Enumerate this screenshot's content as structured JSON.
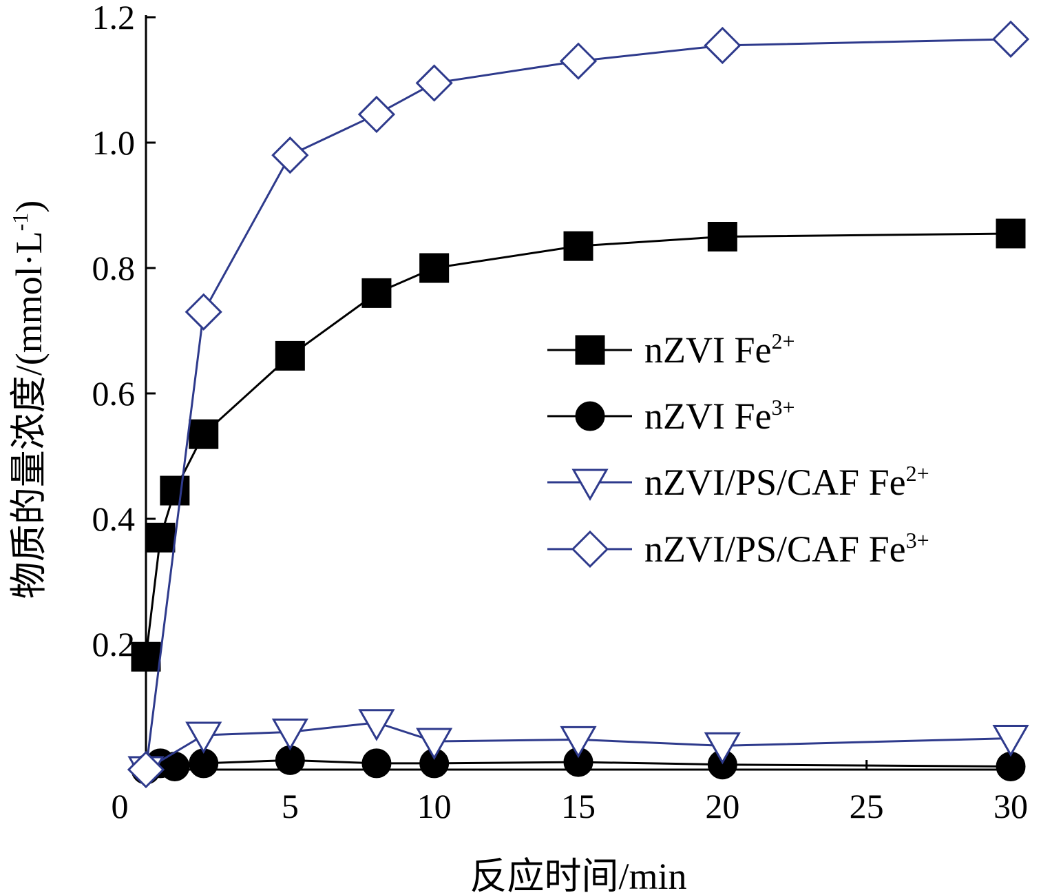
{
  "chart_data": {
    "type": "line",
    "title": "",
    "xlabel": "反应时间/min",
    "ylabel": "物质的量浓度/(mmol·L⁻¹)",
    "ylabel_parts": {
      "main": "物质的量浓度/(mmol·L",
      "sup": "-1",
      "close": ")"
    },
    "xlim": [
      0,
      30
    ],
    "ylim": [
      0,
      1.2
    ],
    "x_ticks": [
      0,
      5,
      10,
      15,
      20,
      25,
      30
    ],
    "x_tick_labels": [
      "0",
      "5",
      "10",
      "15",
      "20",
      "25",
      "30"
    ],
    "y_ticks": [
      0.2,
      0.4,
      0.6,
      0.8,
      1.0,
      1.2
    ],
    "y_tick_labels": [
      "0.2",
      "0.4",
      "0.6",
      "0.8",
      "1.0",
      "1.2"
    ],
    "grid": false,
    "legend_position": "center-right",
    "series": [
      {
        "name": "nZVI Fe²⁺",
        "label_main": "nZVI Fe",
        "label_sup": "2+",
        "marker": "square",
        "filled": true,
        "color": "#000000",
        "x": [
          0,
          0.5,
          1,
          2,
          5,
          8,
          10,
          15,
          20,
          30
        ],
        "y": [
          0.18,
          0.37,
          0.445,
          0.535,
          0.66,
          0.76,
          0.8,
          0.835,
          0.85,
          0.855
        ]
      },
      {
        "name": "nZVI Fe³⁺",
        "label_main": "nZVI Fe",
        "label_sup": "3+",
        "marker": "circle",
        "filled": true,
        "color": "#000000",
        "x": [
          0,
          0.5,
          1,
          2,
          5,
          8,
          10,
          15,
          20,
          30
        ],
        "y": [
          0,
          0.01,
          0.005,
          0.01,
          0.015,
          0.01,
          0.01,
          0.012,
          0.008,
          0.005
        ]
      },
      {
        "name": "nZVI/PS/CAF Fe²⁺",
        "label_main": "nZVI/PS/CAF Fe",
        "label_sup": "2+",
        "marker": "triangle-down",
        "filled": false,
        "color": "#2e3a8c",
        "x": [
          0,
          2,
          5,
          8,
          10,
          15,
          20,
          30
        ],
        "y": [
          0,
          0.055,
          0.06,
          0.075,
          0.045,
          0.048,
          0.038,
          0.05
        ]
      },
      {
        "name": "nZVI/PS/CAF Fe³⁺",
        "label_main": "nZVI/PS/CAF Fe",
        "label_sup": "3+",
        "marker": "diamond",
        "filled": false,
        "color": "#2e3a8c",
        "x": [
          0,
          2,
          5,
          8,
          10,
          15,
          20,
          30
        ],
        "y": [
          0,
          0.73,
          0.98,
          1.045,
          1.095,
          1.13,
          1.155,
          1.165
        ]
      }
    ]
  }
}
